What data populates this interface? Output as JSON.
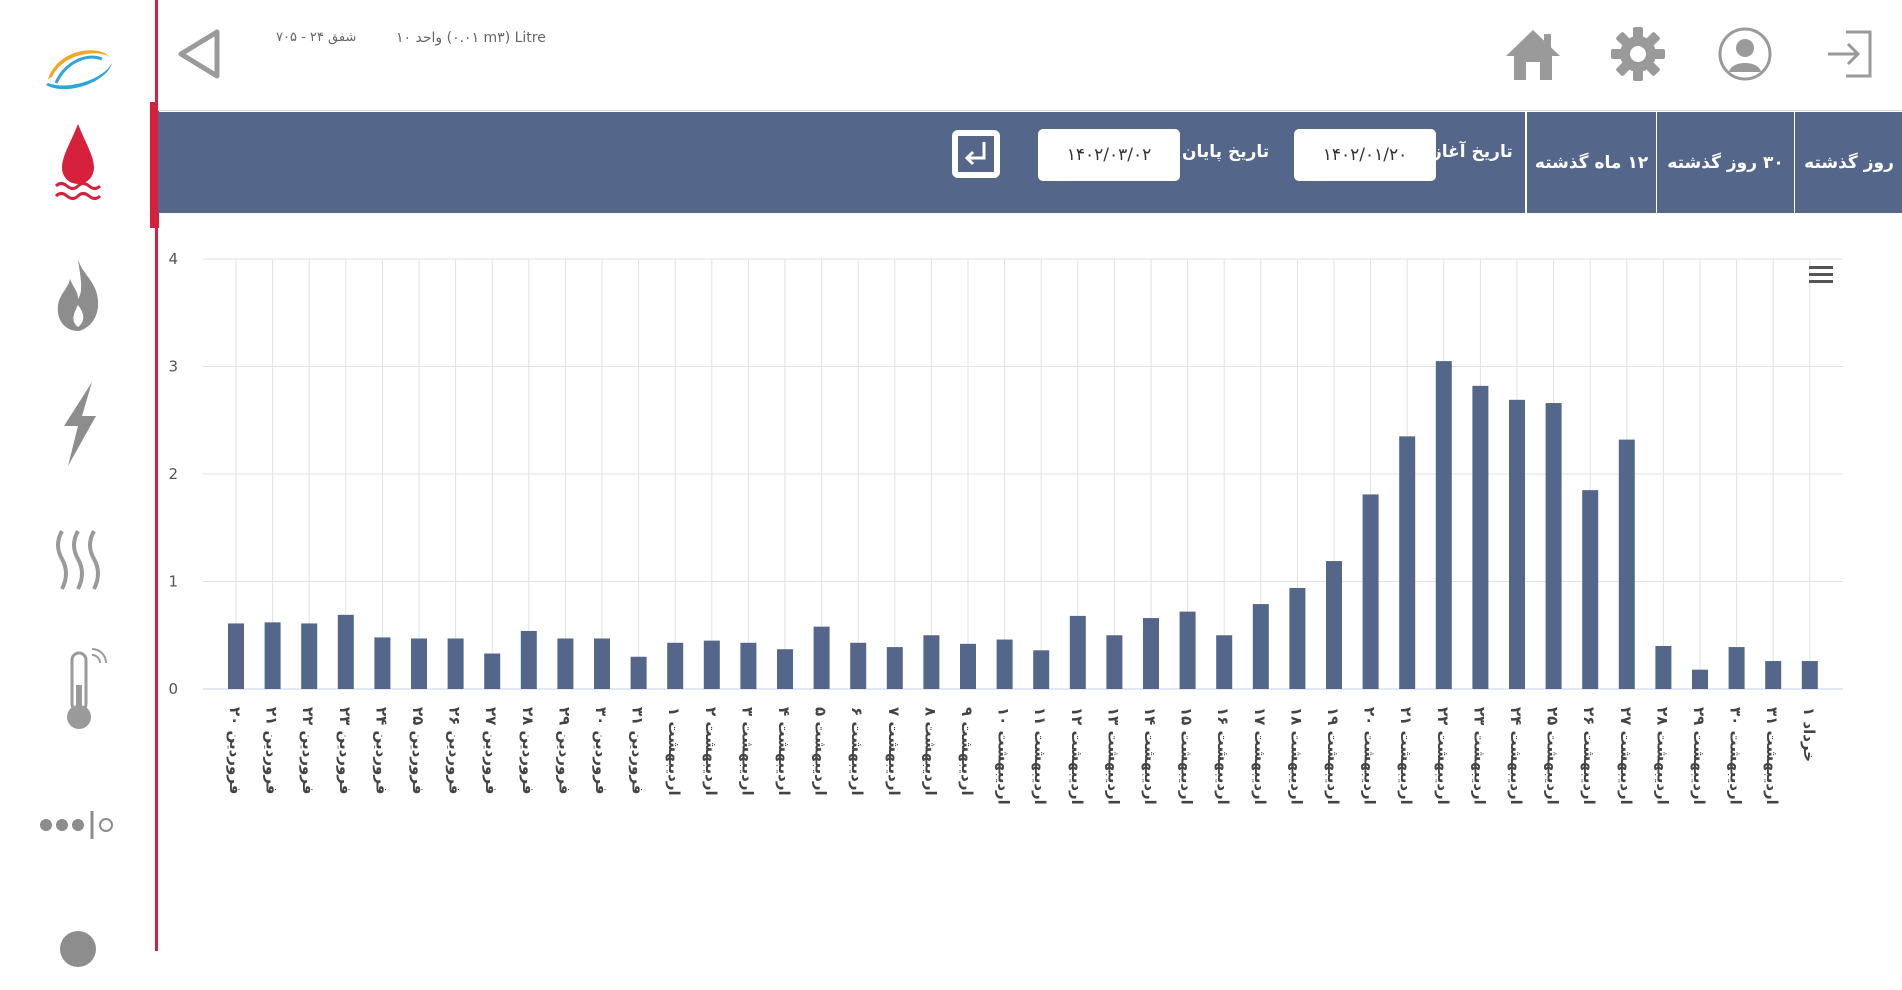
{
  "sidebar": {
    "items": [
      {
        "icon": "app-logo-icon"
      },
      {
        "icon": "water-icon",
        "active": true
      },
      {
        "icon": "gas-flame-icon"
      },
      {
        "icon": "electricity-icon"
      },
      {
        "icon": "heating-icon"
      },
      {
        "icon": "thermometer-icon"
      },
      {
        "icon": "more-devices-icon"
      },
      {
        "icon": "user-device-icon"
      }
    ]
  },
  "topbar": {
    "unit_label": "واحد ۱۰ (۰.۰۱ m۳) Litre",
    "location_label": "شفق ۲۴ - ۷۰۵",
    "icons": [
      "back-icon",
      "home-icon",
      "settings-icon",
      "profile-icon",
      "logout-icon"
    ]
  },
  "filters": {
    "periods": [
      "روز گذشته",
      "۳۰ روز گذشته",
      "۱۲ ماه گذشته"
    ],
    "start_label": "تاریخ آغاز",
    "start_value": "۱۴۰۲/۰۱/۲۰",
    "end_label": "تاریخ پایان",
    "end_value": "۱۴۰۲/۰۳/۰۲",
    "accent": "#54678a"
  },
  "chart_data": {
    "type": "bar",
    "ylim": [
      0,
      4
    ],
    "yticks": [
      "0",
      "1",
      "2",
      "3",
      "4"
    ],
    "bar_color": "#54678a",
    "grid": true,
    "menu_icon": "hamburger-menu-icon",
    "categories": [
      "فروردین ۲۰",
      "فروردین ۲۱",
      "فروردین ۲۲",
      "فروردین ۲۳",
      "فروردین ۲۴",
      "فروردین ۲۵",
      "فروردین ۲۶",
      "فروردین ۲۷",
      "فروردین ۲۸",
      "فروردین ۲۹",
      "فروردین ۳۰",
      "فروردین ۳۱",
      "اردیبهشت ۱",
      "اردیبهشت ۲",
      "اردیبهشت ۳",
      "اردیبهشت ۴",
      "اردیبهشت ۵",
      "اردیبهشت ۶",
      "اردیبهشت ۷",
      "اردیبهشت ۸",
      "اردیبهشت ۹",
      "اردیبهشت ۱۰",
      "اردیبهشت ۱۱",
      "اردیبهشت ۱۲",
      "اردیبهشت ۱۳",
      "اردیبهشت ۱۴",
      "اردیبهشت ۱۵",
      "اردیبهشت ۱۶",
      "اردیبهشت ۱۷",
      "اردیبهشت ۱۸",
      "اردیبهشت ۱۹",
      "اردیبهشت ۲۰",
      "اردیبهشت ۲۱",
      "اردیبهشت ۲۲",
      "اردیبهشت ۲۳",
      "اردیبهشت ۲۴",
      "اردیبهشت ۲۵",
      "اردیبهشت ۲۶",
      "اردیبهشت ۲۷",
      "اردیبهشت ۲۸",
      "اردیبهشت ۲۹",
      "اردیبهشت ۳۰",
      "اردیبهشت ۳۱",
      "خرداد ۱"
    ],
    "values": [
      0.61,
      0.62,
      0.61,
      0.69,
      0.48,
      0.47,
      0.47,
      0.33,
      0.54,
      0.47,
      0.47,
      0.3,
      0.43,
      0.45,
      0.43,
      0.37,
      0.58,
      0.43,
      0.39,
      0.5,
      0.42,
      0.46,
      0.36,
      0.68,
      0.5,
      0.66,
      0.72,
      0.5,
      0.79,
      0.94,
      1.19,
      1.81,
      2.35,
      3.05,
      2.82,
      2.69,
      2.66,
      1.85,
      2.32,
      0.4,
      0.18,
      0.39,
      0.26,
      0.26
    ]
  }
}
